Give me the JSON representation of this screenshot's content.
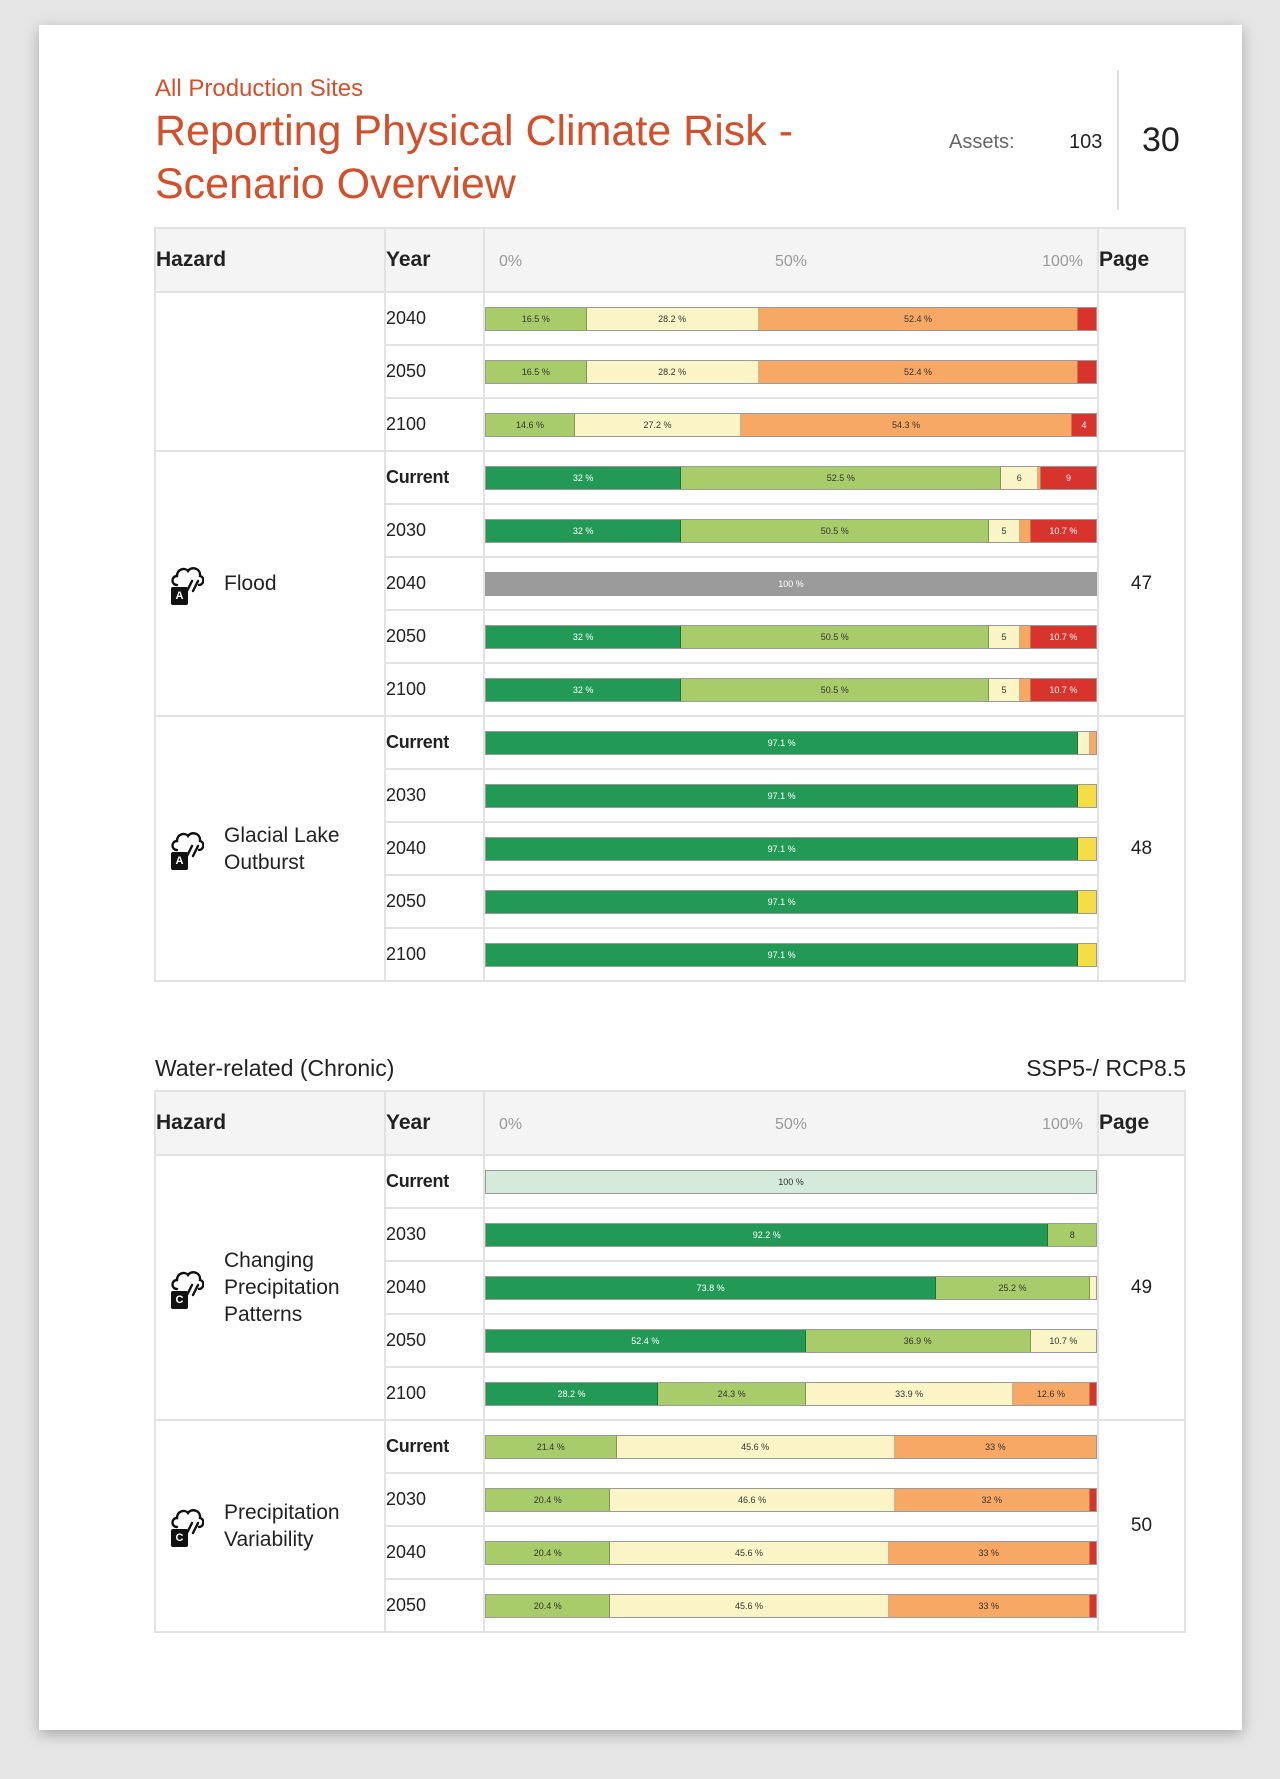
{
  "header": {
    "subtitle": "All Production Sites",
    "title": "Reporting Physical Climate Risk - Scenario Overview",
    "assets_label": "Assets:",
    "assets_value": "103",
    "page_number": "30"
  },
  "colors": {
    "dark_green": "#229954",
    "light_green": "#a8cc6a",
    "pale_yellow": "#fbf4c6",
    "orange": "#f6a864",
    "red": "#d8332c",
    "grey": "#9b9b9b",
    "pale_mint": "#d4eadb",
    "yellow": "#f5dd46"
  },
  "table_header": {
    "hazard": "Hazard",
    "year": "Year",
    "scale_0": "0%",
    "scale_50": "50%",
    "scale_100": "100%",
    "page": "Page"
  },
  "chart_data": {
    "type": "bar",
    "stacked": true,
    "x_range": [
      0,
      100
    ],
    "x_unit": "%",
    "groups": [
      {
        "hazard": "",
        "page": "",
        "rows": [
          {
            "year": "2040",
            "segments": [
              {
                "value": 16.5,
                "label": "16.5 %",
                "color": "light_green"
              },
              {
                "value": 28.2,
                "label": "28.2 %",
                "color": "pale_yellow"
              },
              {
                "value": 52.4,
                "label": "52.4 %",
                "color": "orange"
              },
              {
                "value": 2.9,
                "label": "",
                "color": "red"
              }
            ]
          },
          {
            "year": "2050",
            "segments": [
              {
                "value": 16.5,
                "label": "16.5 %",
                "color": "light_green"
              },
              {
                "value": 28.2,
                "label": "28.2 %",
                "color": "pale_yellow"
              },
              {
                "value": 52.4,
                "label": "52.4 %",
                "color": "orange"
              },
              {
                "value": 2.9,
                "label": "",
                "color": "red"
              }
            ]
          },
          {
            "year": "2100",
            "segments": [
              {
                "value": 14.6,
                "label": "14.6 %",
                "color": "light_green"
              },
              {
                "value": 27.2,
                "label": "27.2 %",
                "color": "pale_yellow"
              },
              {
                "value": 54.3,
                "label": "54.3 %",
                "color": "orange"
              },
              {
                "value": 3.9,
                "label": "4",
                "color": "red"
              }
            ]
          }
        ]
      },
      {
        "hazard": "Flood",
        "badge": "A",
        "page": "47",
        "rows": [
          {
            "year": "Current",
            "current": true,
            "segments": [
              {
                "value": 32,
                "label": "32 %",
                "color": "dark_green"
              },
              {
                "value": 52.5,
                "label": "52.5 %",
                "color": "light_green"
              },
              {
                "value": 6,
                "label": "6",
                "color": "pale_yellow"
              },
              {
                "value": 0.5,
                "label": "",
                "color": "orange"
              },
              {
                "value": 9,
                "label": "9",
                "color": "red"
              }
            ]
          },
          {
            "year": "2030",
            "segments": [
              {
                "value": 32,
                "label": "32 %",
                "color": "dark_green"
              },
              {
                "value": 50.5,
                "label": "50.5 %",
                "color": "light_green"
              },
              {
                "value": 5,
                "label": "5",
                "color": "pale_yellow"
              },
              {
                "value": 1.8,
                "label": "",
                "color": "orange"
              },
              {
                "value": 10.7,
                "label": "10.7 %",
                "color": "red"
              }
            ]
          },
          {
            "year": "2040",
            "segments": [
              {
                "value": 100,
                "label": "100 %",
                "color": "grey"
              }
            ]
          },
          {
            "year": "2050",
            "segments": [
              {
                "value": 32,
                "label": "32 %",
                "color": "dark_green"
              },
              {
                "value": 50.5,
                "label": "50.5 %",
                "color": "light_green"
              },
              {
                "value": 5,
                "label": "5",
                "color": "pale_yellow"
              },
              {
                "value": 1.8,
                "label": "",
                "color": "orange"
              },
              {
                "value": 10.7,
                "label": "10.7 %",
                "color": "red"
              }
            ]
          },
          {
            "year": "2100",
            "segments": [
              {
                "value": 32,
                "label": "32 %",
                "color": "dark_green"
              },
              {
                "value": 50.5,
                "label": "50.5 %",
                "color": "light_green"
              },
              {
                "value": 5,
                "label": "5",
                "color": "pale_yellow"
              },
              {
                "value": 1.8,
                "label": "",
                "color": "orange"
              },
              {
                "value": 10.7,
                "label": "10.7 %",
                "color": "red"
              }
            ]
          }
        ]
      },
      {
        "hazard": "Glacial Lake Outburst",
        "badge": "A",
        "page": "48",
        "rows": [
          {
            "year": "Current",
            "current": true,
            "segments": [
              {
                "value": 97.1,
                "label": "97.1 %",
                "color": "dark_green"
              },
              {
                "value": 1.9,
                "label": "",
                "color": "pale_yellow"
              },
              {
                "value": 1,
                "label": "",
                "color": "orange"
              }
            ]
          },
          {
            "year": "2030",
            "segments": [
              {
                "value": 97.1,
                "label": "97.1 %",
                "color": "dark_green"
              },
              {
                "value": 2.9,
                "label": "",
                "color": "yellow"
              }
            ]
          },
          {
            "year": "2040",
            "segments": [
              {
                "value": 97.1,
                "label": "97.1 %",
                "color": "dark_green"
              },
              {
                "value": 2.9,
                "label": "",
                "color": "yellow"
              }
            ]
          },
          {
            "year": "2050",
            "segments": [
              {
                "value": 97.1,
                "label": "97.1 %",
                "color": "dark_green"
              },
              {
                "value": 2.9,
                "label": "",
                "color": "yellow"
              }
            ]
          },
          {
            "year": "2100",
            "segments": [
              {
                "value": 97.1,
                "label": "97.1 %",
                "color": "dark_green"
              },
              {
                "value": 2.9,
                "label": "",
                "color": "yellow"
              }
            ]
          }
        ]
      }
    ],
    "groups2": [
      {
        "hazard": "Changing Precipitation Patterns",
        "badge": "C",
        "page": "49",
        "rows": [
          {
            "year": "Current",
            "current": true,
            "segments": [
              {
                "value": 100,
                "label": "100 %",
                "color": "pale_mint"
              }
            ]
          },
          {
            "year": "2030",
            "segments": [
              {
                "value": 92.2,
                "label": "92.2 %",
                "color": "dark_green"
              },
              {
                "value": 7.8,
                "label": "8",
                "color": "light_green"
              }
            ]
          },
          {
            "year": "2040",
            "segments": [
              {
                "value": 73.8,
                "label": "73.8 %",
                "color": "dark_green"
              },
              {
                "value": 25.2,
                "label": "25.2 %",
                "color": "light_green"
              },
              {
                "value": 1,
                "label": "",
                "color": "pale_yellow"
              }
            ]
          },
          {
            "year": "2050",
            "segments": [
              {
                "value": 52.4,
                "label": "52.4 %",
                "color": "dark_green"
              },
              {
                "value": 36.9,
                "label": "36.9 %",
                "color": "light_green"
              },
              {
                "value": 10.7,
                "label": "10.7 %",
                "color": "pale_yellow"
              }
            ]
          },
          {
            "year": "2100",
            "segments": [
              {
                "value": 28.2,
                "label": "28.2 %",
                "color": "dark_green"
              },
              {
                "value": 24.3,
                "label": "24.3 %",
                "color": "light_green"
              },
              {
                "value": 33.9,
                "label": "33.9 %",
                "color": "pale_yellow"
              },
              {
                "value": 12.6,
                "label": "12.6 %",
                "color": "orange"
              },
              {
                "value": 1,
                "label": "",
                "color": "red"
              }
            ]
          }
        ]
      },
      {
        "hazard": "Precipitation Variability",
        "badge": "C",
        "page": "50",
        "rows": [
          {
            "year": "Current",
            "current": true,
            "segments": [
              {
                "value": 21.4,
                "label": "21.4 %",
                "color": "light_green"
              },
              {
                "value": 45.6,
                "label": "45.6 %",
                "color": "pale_yellow"
              },
              {
                "value": 33,
                "label": "33 %",
                "color": "orange"
              }
            ]
          },
          {
            "year": "2030",
            "segments": [
              {
                "value": 20.4,
                "label": "20.4 %",
                "color": "light_green"
              },
              {
                "value": 46.6,
                "label": "46.6 %",
                "color": "pale_yellow"
              },
              {
                "value": 32,
                "label": "32 %",
                "color": "orange"
              },
              {
                "value": 1,
                "label": "",
                "color": "red"
              }
            ]
          },
          {
            "year": "2040",
            "segments": [
              {
                "value": 20.4,
                "label": "20.4 %",
                "color": "light_green"
              },
              {
                "value": 45.6,
                "label": "45.6 %",
                "color": "pale_yellow"
              },
              {
                "value": 33,
                "label": "33 %",
                "color": "orange"
              },
              {
                "value": 1,
                "label": "",
                "color": "red"
              }
            ]
          },
          {
            "year": "2050",
            "segments": [
              {
                "value": 20.4,
                "label": "20.4 %",
                "color": "light_green"
              },
              {
                "value": 45.6,
                "label": "45.6 %",
                "color": "pale_yellow"
              },
              {
                "value": 33,
                "label": "33 %",
                "color": "orange"
              },
              {
                "value": 1,
                "label": "",
                "color": "red"
              }
            ]
          }
        ]
      }
    ]
  },
  "section2": {
    "label": "Water-related (Chronic)",
    "scenario": "SSP5-/ RCP8.5"
  }
}
